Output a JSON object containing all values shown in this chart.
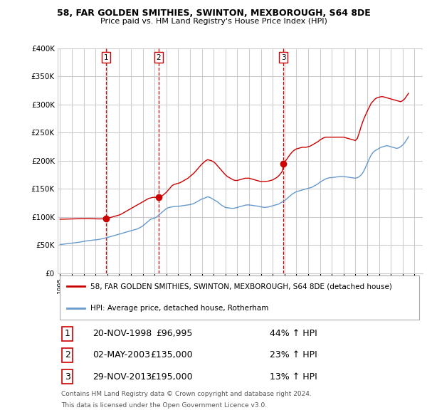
{
  "title1": "58, FAR GOLDEN SMITHIES, SWINTON, MEXBOROUGH, S64 8DE",
  "title2": "Price paid vs. HM Land Registry's House Price Index (HPI)",
  "ylabel_ticks": [
    "£0",
    "£50K",
    "£100K",
    "£150K",
    "£200K",
    "£250K",
    "£300K",
    "£350K",
    "£400K"
  ],
  "ytick_values": [
    0,
    50000,
    100000,
    150000,
    200000,
    250000,
    300000,
    350000,
    400000
  ],
  "ylim": [
    0,
    400000
  ],
  "xlim_start": 1994.8,
  "xlim_end": 2025.7,
  "sale_dates_num": [
    1998.89,
    2003.33,
    2013.91
  ],
  "sale_prices": [
    96995,
    135000,
    195000
  ],
  "sale_labels": [
    "1",
    "2",
    "3"
  ],
  "legend_line1": "58, FAR GOLDEN SMITHIES, SWINTON, MEXBOROUGH, S64 8DE (detached house)",
  "legend_line2": "HPI: Average price, detached house, Rotherham",
  "table_rows": [
    [
      "1",
      "20-NOV-1998",
      "£96,995",
      "44% ↑ HPI"
    ],
    [
      "2",
      "02-MAY-2003",
      "£135,000",
      "23% ↑ HPI"
    ],
    [
      "3",
      "29-NOV-2013",
      "£195,000",
      "13% ↑ HPI"
    ]
  ],
  "footnote1": "Contains HM Land Registry data © Crown copyright and database right 2024.",
  "footnote2": "This data is licensed under the Open Government Licence v3.0.",
  "color_red": "#cc0000",
  "color_blue": "#6699cc",
  "color_vline": "#cc0000",
  "bg_color": "#ffffff",
  "grid_color": "#cccccc",
  "hpi_x": [
    1995.0,
    1995.08,
    1995.17,
    1995.25,
    1995.33,
    1995.42,
    1995.5,
    1995.58,
    1995.67,
    1995.75,
    1995.83,
    1995.92,
    1996.0,
    1996.08,
    1996.17,
    1996.25,
    1996.33,
    1996.42,
    1996.5,
    1996.58,
    1996.67,
    1996.75,
    1996.83,
    1996.92,
    1997.0,
    1997.08,
    1997.17,
    1997.25,
    1997.33,
    1997.42,
    1997.5,
    1997.58,
    1997.67,
    1997.75,
    1997.83,
    1997.92,
    1998.0,
    1998.08,
    1998.17,
    1998.25,
    1998.33,
    1998.42,
    1998.5,
    1998.58,
    1998.67,
    1998.75,
    1998.83,
    1998.92,
    1999.0,
    1999.17,
    1999.33,
    1999.5,
    1999.67,
    1999.83,
    2000.0,
    2000.17,
    2000.33,
    2000.5,
    2000.67,
    2000.83,
    2001.0,
    2001.17,
    2001.33,
    2001.5,
    2001.67,
    2001.83,
    2002.0,
    2002.17,
    2002.33,
    2002.5,
    2002.67,
    2002.83,
    2003.0,
    2003.17,
    2003.33,
    2003.5,
    2003.67,
    2003.83,
    2004.0,
    2004.17,
    2004.33,
    2004.5,
    2004.67,
    2004.83,
    2005.0,
    2005.17,
    2005.33,
    2005.5,
    2005.67,
    2005.83,
    2006.0,
    2006.17,
    2006.33,
    2006.5,
    2006.67,
    2006.83,
    2007.0,
    2007.17,
    2007.33,
    2007.5,
    2007.67,
    2007.83,
    2008.0,
    2008.17,
    2008.33,
    2008.5,
    2008.67,
    2008.83,
    2009.0,
    2009.17,
    2009.33,
    2009.5,
    2009.67,
    2009.83,
    2010.0,
    2010.17,
    2010.33,
    2010.5,
    2010.67,
    2010.83,
    2011.0,
    2011.17,
    2011.33,
    2011.5,
    2011.67,
    2011.83,
    2012.0,
    2012.17,
    2012.33,
    2012.5,
    2012.67,
    2012.83,
    2013.0,
    2013.17,
    2013.33,
    2013.5,
    2013.67,
    2013.83,
    2014.0,
    2014.17,
    2014.33,
    2014.5,
    2014.67,
    2014.83,
    2015.0,
    2015.17,
    2015.33,
    2015.5,
    2015.67,
    2015.83,
    2016.0,
    2016.17,
    2016.33,
    2016.5,
    2016.67,
    2016.83,
    2017.0,
    2017.17,
    2017.33,
    2017.5,
    2017.67,
    2017.83,
    2018.0,
    2018.17,
    2018.33,
    2018.5,
    2018.67,
    2018.83,
    2019.0,
    2019.17,
    2019.33,
    2019.5,
    2019.67,
    2019.83,
    2020.0,
    2020.17,
    2020.33,
    2020.5,
    2020.67,
    2020.83,
    2021.0,
    2021.17,
    2021.33,
    2021.5,
    2021.67,
    2021.83,
    2022.0,
    2022.17,
    2022.33,
    2022.5,
    2022.67,
    2022.83,
    2023.0,
    2023.17,
    2023.33,
    2023.5,
    2023.67,
    2023.83,
    2024.0,
    2024.17,
    2024.33,
    2024.5
  ],
  "hpi_y": [
    51000,
    51200,
    51400,
    51600,
    51800,
    52000,
    52200,
    52400,
    52600,
    52800,
    53000,
    53200,
    53400,
    53600,
    53800,
    54000,
    54200,
    54500,
    54800,
    55100,
    55400,
    55700,
    56000,
    56300,
    56600,
    56900,
    57200,
    57500,
    57800,
    58000,
    58200,
    58400,
    58600,
    58800,
    59000,
    59200,
    59400,
    59600,
    59800,
    60000,
    60300,
    60600,
    61000,
    61400,
    61800,
    62200,
    62600,
    63000,
    63500,
    64500,
    65500,
    66500,
    67500,
    68500,
    69500,
    70500,
    71500,
    72500,
    73500,
    74500,
    75500,
    76500,
    77500,
    78500,
    80000,
    82000,
    84000,
    87000,
    90000,
    93000,
    96000,
    97000,
    98000,
    100000,
    103000,
    106000,
    109000,
    112000,
    115000,
    116500,
    117500,
    118000,
    118500,
    119000,
    119000,
    119500,
    120000,
    120500,
    121000,
    121500,
    122000,
    123000,
    124000,
    126000,
    128000,
    130000,
    132000,
    133000,
    134500,
    136000,
    135000,
    133000,
    131000,
    129000,
    127000,
    124000,
    121000,
    119000,
    117000,
    116500,
    116000,
    115500,
    115500,
    116000,
    117000,
    118000,
    119000,
    120000,
    121000,
    121500,
    121500,
    121000,
    120500,
    120000,
    119500,
    119000,
    118000,
    117500,
    117000,
    117500,
    118000,
    119000,
    120000,
    121000,
    122000,
    123000,
    125000,
    127000,
    129000,
    132000,
    135000,
    138000,
    141000,
    143000,
    145000,
    146000,
    147000,
    148000,
    149000,
    150000,
    151000,
    152000,
    153000,
    155000,
    157000,
    159000,
    162000,
    164000,
    166000,
    168000,
    169000,
    170000,
    170000,
    170500,
    171000,
    171500,
    172000,
    172000,
    172000,
    171500,
    171000,
    170500,
    170000,
    169500,
    169000,
    170000,
    172000,
    175000,
    180000,
    187000,
    195000,
    203000,
    210000,
    215000,
    218000,
    220000,
    222000,
    224000,
    225000,
    226000,
    227000,
    226000,
    225000,
    224000,
    223000,
    222000,
    223000,
    225000,
    228000,
    232000,
    237000,
    243000
  ],
  "red_x": [
    1995.0,
    1995.17,
    1995.33,
    1995.5,
    1995.67,
    1995.83,
    1996.0,
    1996.17,
    1996.33,
    1996.5,
    1996.67,
    1996.83,
    1997.0,
    1997.17,
    1997.33,
    1997.5,
    1997.67,
    1997.83,
    1998.0,
    1998.17,
    1998.33,
    1998.5,
    1998.67,
    1998.83,
    1998.89,
    1999.0,
    1999.17,
    1999.33,
    1999.5,
    1999.67,
    1999.83,
    2000.0,
    2000.17,
    2000.33,
    2000.5,
    2000.67,
    2000.83,
    2001.0,
    2001.17,
    2001.33,
    2001.5,
    2001.67,
    2001.83,
    2002.0,
    2002.17,
    2002.33,
    2002.5,
    2002.67,
    2002.83,
    2003.0,
    2003.17,
    2003.33,
    2003.5,
    2003.67,
    2003.83,
    2004.0,
    2004.17,
    2004.33,
    2004.5,
    2004.67,
    2004.83,
    2005.0,
    2005.17,
    2005.33,
    2005.5,
    2005.67,
    2005.83,
    2006.0,
    2006.17,
    2006.33,
    2006.5,
    2006.67,
    2006.83,
    2007.0,
    2007.17,
    2007.33,
    2007.5,
    2007.67,
    2007.83,
    2008.0,
    2008.17,
    2008.33,
    2008.5,
    2008.67,
    2008.83,
    2009.0,
    2009.17,
    2009.33,
    2009.5,
    2009.67,
    2009.83,
    2010.0,
    2010.17,
    2010.33,
    2010.5,
    2010.67,
    2010.83,
    2011.0,
    2011.17,
    2011.33,
    2011.5,
    2011.67,
    2011.83,
    2012.0,
    2012.17,
    2012.33,
    2012.5,
    2012.67,
    2012.83,
    2013.0,
    2013.17,
    2013.33,
    2013.5,
    2013.67,
    2013.83,
    2013.91,
    2014.0,
    2014.17,
    2014.33,
    2014.5,
    2014.67,
    2014.83,
    2015.0,
    2015.17,
    2015.33,
    2015.5,
    2015.67,
    2015.83,
    2016.0,
    2016.17,
    2016.33,
    2016.5,
    2016.67,
    2016.83,
    2017.0,
    2017.17,
    2017.33,
    2017.5,
    2017.67,
    2017.83,
    2018.0,
    2018.17,
    2018.33,
    2018.5,
    2018.67,
    2018.83,
    2019.0,
    2019.17,
    2019.33,
    2019.5,
    2019.67,
    2019.83,
    2020.0,
    2020.17,
    2020.33,
    2020.5,
    2020.67,
    2020.83,
    2021.0,
    2021.17,
    2021.33,
    2021.5,
    2021.67,
    2021.83,
    2022.0,
    2022.17,
    2022.33,
    2022.5,
    2022.67,
    2022.83,
    2023.0,
    2023.17,
    2023.33,
    2023.5,
    2023.67,
    2023.83,
    2024.0,
    2024.17,
    2024.33,
    2024.5
  ],
  "red_y": [
    96000,
    96100,
    96200,
    96300,
    96400,
    96500,
    96600,
    96700,
    96800,
    96900,
    97000,
    97100,
    97200,
    97300,
    97200,
    97100,
    97000,
    96900,
    96800,
    96700,
    96600,
    96700,
    96800,
    96900,
    96995,
    97500,
    98500,
    99500,
    100500,
    101500,
    102500,
    103500,
    105000,
    107000,
    109000,
    111000,
    113000,
    115000,
    117000,
    119000,
    121000,
    123000,
    125000,
    127000,
    129000,
    131000,
    133000,
    134000,
    134800,
    135000,
    135000,
    135000,
    136000,
    138000,
    141000,
    144000,
    148000,
    152000,
    156000,
    158000,
    159000,
    160000,
    161000,
    163000,
    165000,
    167000,
    169000,
    172000,
    175000,
    178000,
    182000,
    186000,
    190000,
    194000,
    197000,
    200000,
    202000,
    201000,
    200000,
    198000,
    195000,
    191000,
    187000,
    183000,
    179000,
    175000,
    172000,
    170000,
    168000,
    166000,
    165000,
    165000,
    166000,
    167000,
    168000,
    169000,
    169000,
    169000,
    168000,
    167000,
    166000,
    165000,
    164000,
    163000,
    163000,
    163000,
    163500,
    164000,
    165000,
    166000,
    168000,
    170000,
    173000,
    177000,
    182000,
    195000,
    198000,
    202000,
    207000,
    212000,
    216000,
    219000,
    221000,
    222000,
    223000,
    224000,
    224000,
    224000,
    225000,
    226000,
    228000,
    230000,
    232000,
    234000,
    237000,
    239000,
    241000,
    242000,
    242000,
    242000,
    242000,
    242000,
    242000,
    242000,
    242000,
    242000,
    242000,
    241000,
    240000,
    239000,
    238000,
    237000,
    236000,
    240000,
    250000,
    262000,
    272000,
    280000,
    288000,
    295000,
    302000,
    306000,
    310000,
    312000,
    313000,
    314000,
    314000,
    313000,
    312000,
    311000,
    310000,
    309000,
    308000,
    307000,
    306000,
    305000,
    307000,
    310000,
    315000,
    320000
  ]
}
